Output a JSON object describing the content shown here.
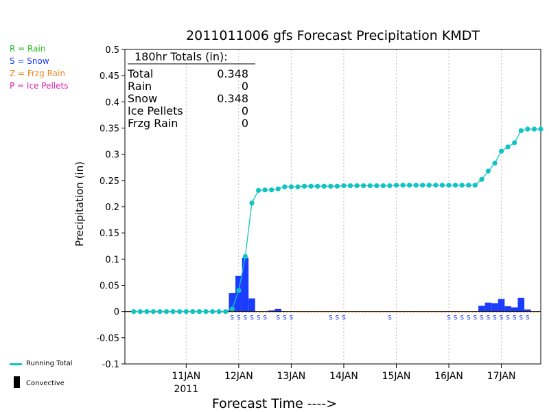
{
  "legend": {
    "items": [
      {
        "label": "R = Rain",
        "color": "#22bb22"
      },
      {
        "label": "S = Snow",
        "color": "#1a3cff"
      },
      {
        "label": "Z = Frzg Rain",
        "color": "#ee8822"
      },
      {
        "label": "P = Ice Pellets",
        "color": "#dd22aa"
      }
    ],
    "running_total_label": "Running Total",
    "convective_label": "Convective"
  },
  "totals_box": {
    "header": "180hr Totals (in):",
    "rows": [
      {
        "label": "Total",
        "value": "0.348"
      },
      {
        "label": "Rain",
        "value": "0"
      },
      {
        "label": "Snow",
        "value": "0.348"
      },
      {
        "label": "Ice Pellets",
        "value": "0"
      },
      {
        "label": "Frzg Rain",
        "value": "0"
      }
    ]
  },
  "chart_data": {
    "type": "bar",
    "title": "2011011006 gfs Forecast Precipitation KMDT",
    "xlabel": "Forecast Time ---->",
    "ylabel": "Precipitation (in)",
    "ylim": [
      -0.1,
      0.5
    ],
    "yticks": [
      "0.5",
      "0.45",
      "0.4",
      "0.35",
      "0.3",
      "0.25",
      "0.2",
      "0.15",
      "0.1",
      "0.05",
      "0",
      "-0.05",
      "-0.1"
    ],
    "xlim_hours": [
      -10,
      180
    ],
    "x_tick_labels": [
      "11JAN",
      "12JAN",
      "13JAN",
      "14JAN",
      "15JAN",
      "16JAN",
      "17JAN"
    ],
    "x_tick_hours": [
      18,
      42,
      66,
      90,
      114,
      138,
      162
    ],
    "year_label": "2011",
    "grid": "vertical dotted",
    "colors": {
      "snow": "#1a3cff",
      "running_total": "#11c4c4",
      "zero_line": "#ee8822"
    },
    "series": [
      {
        "name": "Snow",
        "hours": [
          39,
          42,
          45,
          48,
          57,
          60,
          153,
          156,
          159,
          162,
          165,
          168,
          171,
          174
        ],
        "values": [
          0.035,
          0.068,
          0.102,
          0.025,
          0.002,
          0.005,
          0.011,
          0.017,
          0.016,
          0.024,
          0.01,
          0.008,
          0.026,
          0.004
        ]
      },
      {
        "name": "Running Total",
        "hours": [
          -6,
          -3,
          0,
          3,
          6,
          9,
          12,
          15,
          18,
          21,
          24,
          27,
          30,
          33,
          36,
          39,
          42,
          45,
          48,
          51,
          54,
          57,
          60,
          63,
          66,
          69,
          72,
          75,
          78,
          81,
          84,
          87,
          90,
          93,
          96,
          99,
          102,
          105,
          108,
          111,
          114,
          117,
          120,
          123,
          126,
          129,
          132,
          135,
          138,
          141,
          144,
          147,
          150,
          153,
          156,
          159,
          162,
          165,
          168,
          171,
          174,
          177,
          180
        ],
        "values": [
          0,
          0,
          0,
          0,
          0,
          0,
          0,
          0,
          0,
          0,
          0,
          0,
          0,
          0,
          0,
          0.005,
          0.04,
          0.105,
          0.207,
          0.231,
          0.232,
          0.232,
          0.234,
          0.238,
          0.238,
          0.238,
          0.239,
          0.239,
          0.239,
          0.239,
          0.239,
          0.239,
          0.24,
          0.24,
          0.24,
          0.24,
          0.24,
          0.24,
          0.24,
          0.24,
          0.241,
          0.241,
          0.241,
          0.241,
          0.241,
          0.241,
          0.241,
          0.241,
          0.241,
          0.241,
          0.241,
          0.241,
          0.241,
          0.252,
          0.268,
          0.283,
          0.306,
          0.314,
          0.322,
          0.345,
          0.348,
          0.348,
          0.348
        ]
      }
    ],
    "snow_markers": {
      "label": "S",
      "hours": [
        39,
        42,
        45,
        48,
        51,
        54,
        60,
        63,
        66,
        84,
        87,
        90,
        111,
        138,
        141,
        144,
        147,
        150,
        153,
        156,
        159,
        162,
        165,
        168,
        171,
        174
      ]
    }
  }
}
